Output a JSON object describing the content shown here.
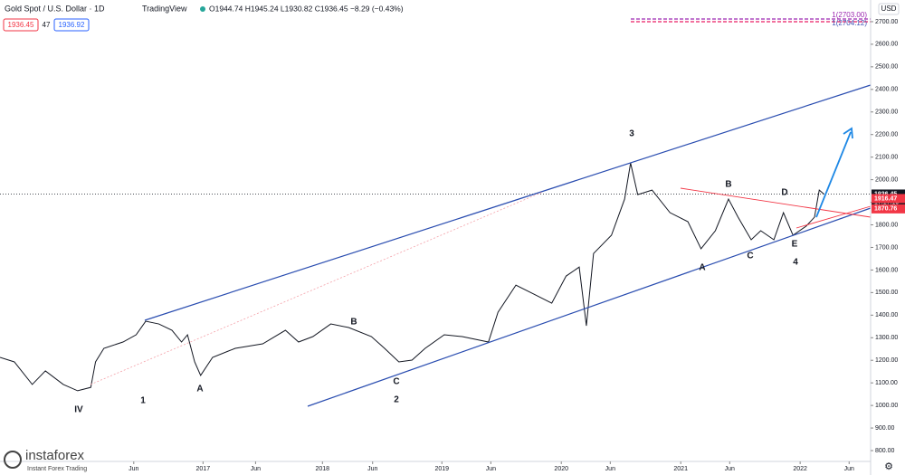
{
  "chart_data": {
    "type": "line",
    "title": "Gold Spot / U.S. Dollar · 1D",
    "source": "TradingView",
    "ohlc_text": "O1944.74 H1945.24 L1930.82 C1936.45 −8.29 (−0.43%)",
    "sell_price": "1936.45",
    "spread": "47",
    "buy_price": "1936.92",
    "currency": "USD",
    "price_marks": [
      {
        "value": 1936.45,
        "color": "#131722"
      },
      {
        "value": 1916.47,
        "color": "#f23645"
      },
      {
        "value": 1870.76,
        "color": "#f23645"
      }
    ],
    "countdown": "17:17:19",
    "target_labels": [
      "1(2703.00)",
      "1(2704.12)"
    ],
    "wave_labels": [
      "IV",
      "1",
      "A",
      "B",
      "C",
      "2",
      "3",
      "A",
      "B",
      "C",
      "D",
      "E",
      "4"
    ],
    "logo": "instaforex",
    "logo_tagline": "Instant Forex Trading",
    "x": [
      2015.3,
      2015.42,
      2015.57,
      2015.68,
      2015.83,
      2015.95,
      2016.06,
      2016.1,
      2016.17,
      2016.33,
      2016.44,
      2016.52,
      2016.63,
      2016.74,
      2016.82,
      2016.87,
      2016.93,
      2016.98,
      2017.08,
      2017.27,
      2017.5,
      2017.69,
      2017.8,
      2017.92,
      2018.07,
      2018.22,
      2018.41,
      2018.52,
      2018.64,
      2018.75,
      2018.86,
      2019.02,
      2019.17,
      2019.39,
      2019.47,
      2019.62,
      2019.77,
      2019.92,
      2020.04,
      2020.15,
      2020.21,
      2020.27,
      2020.42,
      2020.53,
      2020.58,
      2020.64,
      2020.76,
      2020.91,
      2021.06,
      2021.17,
      2021.29,
      2021.4,
      2021.48,
      2021.59,
      2021.67,
      2021.78,
      2021.86,
      2021.94,
      2022.05,
      2022.12,
      2022.16,
      2022.2
    ],
    "series": [
      {
        "name": "XAUUSD",
        "color": "#131722",
        "values": [
          1213,
          1193,
          1093,
          1153,
          1093,
          1065,
          1080,
          1193,
          1253,
          1281,
          1313,
          1373,
          1361,
          1333,
          1281,
          1313,
          1193,
          1133,
          1213,
          1253,
          1273,
          1333,
          1281,
          1305,
          1361,
          1345,
          1305,
          1253,
          1193,
          1201,
          1253,
          1313,
          1305,
          1281,
          1413,
          1533,
          1493,
          1453,
          1573,
          1613,
          1353,
          1673,
          1754,
          1914,
          2074,
          1934,
          1954,
          1854,
          1814,
          1694,
          1774,
          1914,
          1834,
          1734,
          1774,
          1734,
          1854,
          1754,
          1794,
          1834,
          1954,
          1936
        ]
      }
    ],
    "xlim": [
      2015.3,
      2022.59
    ],
    "ylim": [
      752,
      2796
    ],
    "xticks": [
      {
        "value": 2016.42,
        "label": "Jun"
      },
      2017,
      {
        "value": 2017.44,
        "label": "Jun"
      },
      2018,
      {
        "value": 2018.42,
        "label": "Jun"
      },
      2019,
      {
        "value": 2019.41,
        "label": "Jun"
      },
      2020,
      {
        "value": 2020.41,
        "label": "Jun"
      },
      2021,
      {
        "value": 2021.41,
        "label": "Jun"
      },
      2022,
      {
        "value": 2022.41,
        "label": "Jun"
      }
    ],
    "yticks": [
      {
        "value": 800,
        "label": "800.00"
      },
      {
        "value": 900,
        "label": "900.00"
      },
      {
        "value": 1000,
        "label": "1000.00"
      },
      {
        "value": 1100,
        "label": "1100.00"
      },
      {
        "value": 1200,
        "label": "1200.00"
      },
      {
        "value": 1300,
        "label": "1300.00"
      },
      {
        "value": 1400,
        "label": "1400.00"
      },
      {
        "value": 1500,
        "label": "1500.00"
      },
      {
        "value": 1600,
        "label": "1600.00"
      },
      {
        "value": 1700,
        "label": "1700.00"
      },
      {
        "value": 1800,
        "label": "1800.00"
      },
      {
        "value": 1900,
        "label": "1900.00"
      },
      {
        "value": 2000,
        "label": "2000.00"
      },
      {
        "value": 2100,
        "label": "2100.00"
      },
      {
        "value": 2200,
        "label": "2200.00"
      },
      {
        "value": 2300,
        "label": "2300.00"
      },
      {
        "value": 2400,
        "label": "2400.00"
      },
      {
        "value": 2500,
        "label": "2500.00"
      },
      {
        "value": 2600,
        "label": "2600.00"
      },
      {
        "value": 2700,
        "label": "2700.00"
      }
    ]
  }
}
